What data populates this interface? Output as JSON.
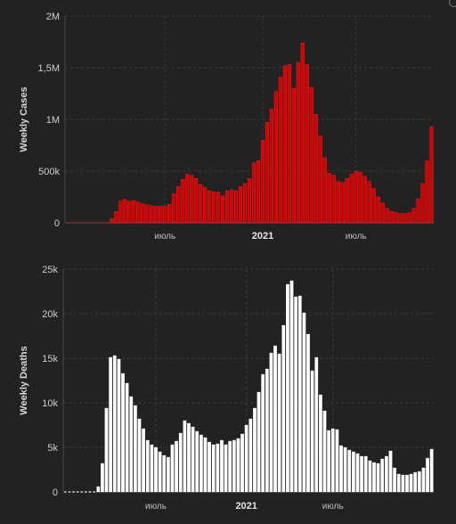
{
  "charts": [
    {
      "id": "weekly-cases",
      "type": "bar",
      "ylabel": "Weekly Cases",
      "bar_color": "#d40000",
      "bar_stroke": "#ff3a3a",
      "ylim": [
        0,
        2000000
      ],
      "yticks": [
        {
          "value": 0,
          "label": "0"
        },
        {
          "value": 500000,
          "label": "500k"
        },
        {
          "value": 1000000,
          "label": "1M"
        },
        {
          "value": 1500000,
          "label": "1,5M"
        },
        {
          "value": 2000000,
          "label": "2M"
        }
      ],
      "xticks": [
        {
          "index": 22,
          "label": "июль",
          "major": false
        },
        {
          "index": 44,
          "label": "2021",
          "major": true
        },
        {
          "index": 65,
          "label": "июль",
          "major": false
        }
      ],
      "values": [
        0,
        0,
        0,
        0,
        0,
        0,
        0,
        0,
        0,
        0,
        40000,
        110000,
        210000,
        225000,
        210000,
        215000,
        200000,
        185000,
        175000,
        165000,
        160000,
        160000,
        160000,
        180000,
        280000,
        350000,
        420000,
        470000,
        460000,
        430000,
        370000,
        340000,
        310000,
        300000,
        295000,
        260000,
        310000,
        320000,
        310000,
        350000,
        380000,
        430000,
        580000,
        600000,
        800000,
        970000,
        1100000,
        1270000,
        1410000,
        1520000,
        1530000,
        1300000,
        1550000,
        1740000,
        1530000,
        1310000,
        1050000,
        840000,
        630000,
        480000,
        460000,
        400000,
        390000,
        430000,
        470000,
        500000,
        490000,
        450000,
        400000,
        330000,
        250000,
        190000,
        140000,
        110000,
        100000,
        90000,
        90000,
        100000,
        140000,
        230000,
        380000,
        600000,
        930000
      ]
    },
    {
      "id": "weekly-deaths",
      "type": "bar",
      "ylabel": "Weekly Deaths",
      "bar_color": "#ffffff",
      "bar_stroke": "#ffffff",
      "ylim": [
        0,
        25000
      ],
      "yticks": [
        {
          "value": 0,
          "label": "0"
        },
        {
          "value": 5000,
          "label": "5k"
        },
        {
          "value": 10000,
          "label": "10k"
        },
        {
          "value": 15000,
          "label": "15k"
        },
        {
          "value": 20000,
          "label": "20k"
        },
        {
          "value": 25000,
          "label": "25k"
        }
      ],
      "xticks": [
        {
          "index": 22,
          "label": "июль",
          "major": false
        },
        {
          "index": 44,
          "label": "2021",
          "major": true
        },
        {
          "index": 65,
          "label": "июль",
          "major": false
        }
      ],
      "values": [
        0,
        0,
        0,
        0,
        0,
        0,
        0,
        0,
        600,
        3200,
        9400,
        15100,
        15300,
        14900,
        13300,
        12200,
        10700,
        9700,
        8200,
        7100,
        5800,
        5300,
        5000,
        4500,
        4100,
        3900,
        5300,
        5700,
        6600,
        8000,
        7700,
        7300,
        6800,
        6400,
        6100,
        5600,
        5300,
        5400,
        5800,
        5300,
        5700,
        5800,
        6000,
        6500,
        7500,
        8200,
        9400,
        11200,
        13200,
        13800,
        15600,
        16400,
        15500,
        18700,
        23300,
        23700,
        21900,
        22000,
        20100,
        17700,
        13600,
        15100,
        10900,
        9100,
        6900,
        7100,
        7000,
        5200,
        5000,
        4700,
        4500,
        4300,
        4000,
        4000,
        3500,
        3300,
        3200,
        3700,
        4000,
        4600,
        2700,
        2000,
        1900,
        1900,
        2000,
        2200,
        2300,
        2700,
        3800,
        4800
      ]
    }
  ]
}
